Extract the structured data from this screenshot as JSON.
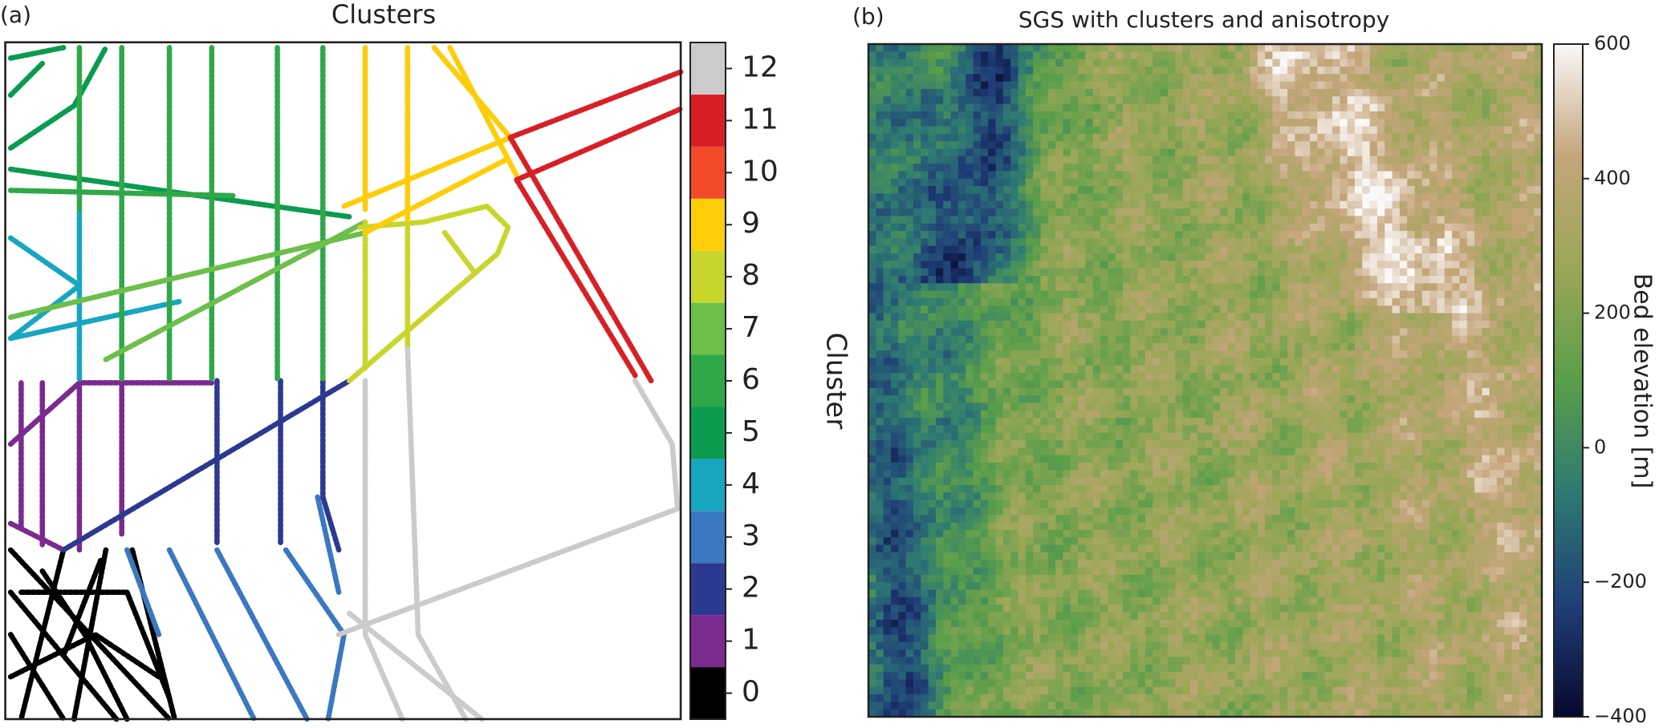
{
  "chart_data": [
    {
      "type": "cluster-map",
      "panel_label": "(a)",
      "title": "Clusters",
      "colorbar": {
        "label": "Cluster",
        "ylim": [
          -0.5,
          12.5
        ],
        "yticks": [
          0,
          1,
          2,
          3,
          4,
          5,
          6,
          7,
          8,
          9,
          10,
          11,
          12
        ],
        "colors": [
          "#000000",
          "#7b2a8f",
          "#2b3990",
          "#3a78c0",
          "#17a6bf",
          "#0b9b4f",
          "#2fa84a",
          "#6cbf4a",
          "#c8d62b",
          "#fdcd08",
          "#f04a2a",
          "#d81f26",
          "#cbcbcb"
        ]
      }
    },
    {
      "type": "heatmap",
      "panel_label": "(b)",
      "title": "SGS with clusters and anisotropy",
      "colorbar": {
        "label": "Bed elevation [m]",
        "ylim": [
          -400,
          600
        ],
        "yticks": [
          {
            "value": -400,
            "label": "−400"
          },
          {
            "value": -200,
            "label": "−200"
          },
          0,
          200,
          400,
          600
        ],
        "colormap": [
          "#07072e",
          "#1f3f78",
          "#2e7a73",
          "#5a9e4a",
          "#9aa757",
          "#c4a57a",
          "#fbf8f8"
        ]
      }
    }
  ]
}
